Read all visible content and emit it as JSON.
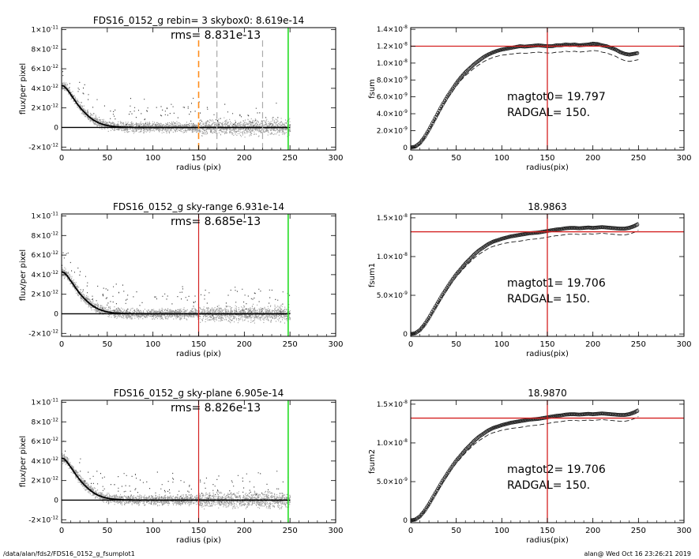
{
  "footer": {
    "left": "/data/alan/fds2/FDS16_0152_g_fsumplot1",
    "right": "alan@  Wed Oct 16 23:26:21 2019"
  },
  "colors": {
    "red": "#d42020",
    "green": "#22dd22",
    "orange": "#ff8c1a",
    "dash_gray": "#aaaaaa",
    "scatter_gray": "#9a9a9a",
    "scatter_dark": "#333333",
    "curve": "#222222"
  },
  "chart_data": [
    {
      "id": "p1",
      "type": "scatter",
      "title": "FDS16_0152_g rebin= 3    skybox0:  8.619e-14",
      "xlabel": "radius (pix)",
      "ylabel": "flux/per pixel",
      "xlim": [
        0,
        300
      ],
      "ylim": [
        -2.3e-12,
        1.02e-11
      ],
      "x_ticks": [
        0,
        50,
        100,
        150,
        200,
        250,
        300
      ],
      "y_ticks": [
        {
          "v": 1e-11,
          "m": "1×10",
          "e": "-11"
        },
        {
          "v": 8e-12,
          "m": "8×10",
          "e": "-12"
        },
        {
          "v": 6e-12,
          "m": "6×10",
          "e": "-12"
        },
        {
          "v": 4e-12,
          "m": "4×10",
          "e": "-12"
        },
        {
          "v": 2e-12,
          "m": "2×10",
          "e": "-12"
        },
        {
          "v": 0,
          "m": "0",
          "e": ""
        },
        {
          "v": -2e-12,
          "m": "-2×10",
          "e": "-12"
        }
      ],
      "annotation": "rms= 8.831e-13",
      "vlines": [
        {
          "x": 150,
          "style": "orange-dashed"
        },
        {
          "x": 170,
          "style": "gray-dashed"
        },
        {
          "x": 220,
          "style": "gray-dashed"
        },
        {
          "x": 248,
          "style": "green"
        }
      ],
      "profile": {
        "x": [
          0,
          3,
          6,
          9,
          12,
          15,
          18,
          21,
          25,
          30,
          35,
          40,
          45,
          50,
          55,
          60,
          65,
          70,
          75,
          80,
          90,
          100,
          110,
          120,
          130,
          140,
          150,
          160,
          170,
          180,
          190,
          200,
          210,
          220,
          230,
          240,
          248
        ],
        "y": [
          4.3e-12,
          4.2e-12,
          3.9e-12,
          3.5e-12,
          3.1e-12,
          2.7e-12,
          2.3e-12,
          1.95e-12,
          1.55e-12,
          1.1e-12,
          7.5e-13,
          5e-13,
          3.2e-13,
          2e-13,
          1.2e-13,
          8e-14,
          5e-14,
          3e-14,
          2e-14,
          1e-14,
          5e-15,
          0,
          0,
          0,
          0,
          0,
          0,
          0,
          0,
          0,
          0,
          0,
          0,
          0,
          0,
          0,
          0
        ]
      }
    },
    {
      "id": "p2",
      "type": "line",
      "title": "",
      "xlabel": "radius(pix)",
      "ylabel": "fsum",
      "xlim": [
        0,
        300
      ],
      "ylim": [
        -3e-10,
        1.42e-08
      ],
      "x_ticks": [
        0,
        50,
        100,
        150,
        200,
        250,
        300
      ],
      "y_ticks": [
        {
          "v": 1.4e-08,
          "m": "1.4×10",
          "e": "-8"
        },
        {
          "v": 1.2e-08,
          "m": "1.2×10",
          "e": "-8"
        },
        {
          "v": 1e-08,
          "m": "1.0×10",
          "e": "-8"
        },
        {
          "v": 8e-09,
          "m": "8.0×10",
          "e": "-9"
        },
        {
          "v": 6e-09,
          "m": "6.0×10",
          "e": "-9"
        },
        {
          "v": 4e-09,
          "m": "4.0×10",
          "e": "-9"
        },
        {
          "v": 2e-09,
          "m": "2.0×10",
          "e": "-9"
        },
        {
          "v": 0,
          "m": "0",
          "e": ""
        }
      ],
      "annotation_lines": [
        "magtot0=  19.797",
        "RADGAL=    150."
      ],
      "hline": 1.2e-08,
      "vline": 150,
      "x": [
        0,
        5,
        10,
        15,
        20,
        25,
        30,
        35,
        40,
        45,
        50,
        55,
        60,
        65,
        70,
        75,
        80,
        85,
        90,
        95,
        100,
        105,
        110,
        115,
        120,
        125,
        130,
        135,
        140,
        145,
        150,
        155,
        160,
        165,
        170,
        175,
        180,
        185,
        190,
        195,
        200,
        205,
        210,
        215,
        220,
        225,
        230,
        235,
        240,
        245,
        250
      ],
      "y": [
        0,
        1e-10,
        5e-10,
        1.2e-09,
        2.1e-09,
        3.1e-09,
        4.1e-09,
        5.1e-09,
        6e-09,
        6.8e-09,
        7.6e-09,
        8.3e-09,
        8.9e-09,
        9.4e-09,
        9.9e-09,
        1.03e-08,
        1.07e-08,
        1.1e-08,
        1.125e-08,
        1.145e-08,
        1.16e-08,
        1.17e-08,
        1.18e-08,
        1.19e-08,
        1.2e-08,
        1.195e-08,
        1.2e-08,
        1.205e-08,
        1.21e-08,
        1.205e-08,
        1.2e-08,
        1.2e-08,
        1.21e-08,
        1.21e-08,
        1.22e-08,
        1.215e-08,
        1.22e-08,
        1.21e-08,
        1.215e-08,
        1.22e-08,
        1.23e-08,
        1.225e-08,
        1.21e-08,
        1.2e-08,
        1.18e-08,
        1.16e-08,
        1.13e-08,
        1.11e-08,
        1.1e-08,
        1.11e-08,
        1.12e-08
      ],
      "envelope_offset": [
        8e-10,
        -3e-10
      ]
    },
    {
      "id": "p3",
      "type": "scatter",
      "title": "FDS16_0152_g sky-range  6.931e-14",
      "xlabel": "radius (pix)",
      "ylabel": "flux/per pixel",
      "xlim": [
        0,
        300
      ],
      "ylim": [
        -2.3e-12,
        1.02e-11
      ],
      "x_ticks": [
        0,
        50,
        100,
        150,
        200,
        250,
        300
      ],
      "y_ticks": [
        {
          "v": 1e-11,
          "m": "1×10",
          "e": "-11"
        },
        {
          "v": 8e-12,
          "m": "8×10",
          "e": "-12"
        },
        {
          "v": 6e-12,
          "m": "6×10",
          "e": "-12"
        },
        {
          "v": 4e-12,
          "m": "4×10",
          "e": "-12"
        },
        {
          "v": 2e-12,
          "m": "2×10",
          "e": "-12"
        },
        {
          "v": 0,
          "m": "0",
          "e": ""
        },
        {
          "v": -2e-12,
          "m": "-2×10",
          "e": "-12"
        }
      ],
      "annotation": "rms= 8.685e-13",
      "vlines": [
        {
          "x": 150,
          "style": "red"
        },
        {
          "x": 248,
          "style": "green"
        }
      ],
      "profile": {
        "x": [
          0,
          3,
          6,
          9,
          12,
          15,
          18,
          21,
          25,
          30,
          35,
          40,
          45,
          50,
          55,
          60,
          65,
          70,
          75,
          80,
          90,
          100,
          110,
          120,
          130,
          140,
          150,
          160,
          170,
          180,
          190,
          200,
          210,
          220,
          230,
          240,
          248
        ],
        "y": [
          4.3e-12,
          4.2e-12,
          3.9e-12,
          3.5e-12,
          3.1e-12,
          2.7e-12,
          2.3e-12,
          1.95e-12,
          1.55e-12,
          1.1e-12,
          7.5e-13,
          5e-13,
          3.2e-13,
          2e-13,
          1.2e-13,
          8e-14,
          5e-14,
          3e-14,
          2e-14,
          1e-14,
          5e-15,
          0,
          0,
          0,
          0,
          0,
          0,
          0,
          0,
          0,
          0,
          0,
          0,
          0,
          0,
          0,
          0
        ]
      }
    },
    {
      "id": "p4",
      "type": "line",
      "title": "18.9863",
      "xlabel": "radius(pix)",
      "ylabel": "fsum1",
      "xlim": [
        0,
        300
      ],
      "ylim": [
        -3e-10,
        1.55e-08
      ],
      "x_ticks": [
        0,
        50,
        100,
        150,
        200,
        250,
        300
      ],
      "y_ticks": [
        {
          "v": 1.5e-08,
          "m": "1.5×10",
          "e": "-8"
        },
        {
          "v": 1e-08,
          "m": "1.0×10",
          "e": "-8"
        },
        {
          "v": 5e-09,
          "m": "5.0×10",
          "e": "-9"
        },
        {
          "v": 0,
          "m": "0",
          "e": ""
        }
      ],
      "annotation_lines": [
        "magtot1=  19.706",
        "RADGAL=    150."
      ],
      "hline": 1.32e-08,
      "vline": 150,
      "x": [
        0,
        5,
        10,
        15,
        20,
        25,
        30,
        35,
        40,
        45,
        50,
        55,
        60,
        65,
        70,
        75,
        80,
        85,
        90,
        95,
        100,
        105,
        110,
        115,
        120,
        125,
        130,
        135,
        140,
        145,
        150,
        155,
        160,
        165,
        170,
        175,
        180,
        185,
        190,
        195,
        200,
        205,
        210,
        215,
        220,
        225,
        230,
        235,
        240,
        245,
        250
      ],
      "y": [
        0,
        1e-10,
        5e-10,
        1.2e-09,
        2.1e-09,
        3.1e-09,
        4.1e-09,
        5.1e-09,
        6e-09,
        6.9e-09,
        7.7e-09,
        8.4e-09,
        9.1e-09,
        9.7e-09,
        1.03e-08,
        1.08e-08,
        1.12e-08,
        1.16e-08,
        1.19e-08,
        1.21e-08,
        1.23e-08,
        1.245e-08,
        1.26e-08,
        1.27e-08,
        1.28e-08,
        1.29e-08,
        1.3e-08,
        1.305e-08,
        1.31e-08,
        1.32e-08,
        1.33e-08,
        1.34e-08,
        1.35e-08,
        1.355e-08,
        1.365e-08,
        1.37e-08,
        1.37e-08,
        1.365e-08,
        1.37e-08,
        1.375e-08,
        1.37e-08,
        1.375e-08,
        1.38e-08,
        1.375e-08,
        1.37e-08,
        1.365e-08,
        1.36e-08,
        1.36e-08,
        1.37e-08,
        1.39e-08,
        1.42e-08
      ],
      "envelope_offset": [
        8e-10,
        -9e-10
      ]
    },
    {
      "id": "p5",
      "type": "scatter",
      "title": "FDS16_0152_g sky-plane  6.905e-14",
      "xlabel": "radius (pix)",
      "ylabel": "flux/per pixel",
      "xlim": [
        0,
        300
      ],
      "ylim": [
        -2.3e-12,
        1.02e-11
      ],
      "x_ticks": [
        0,
        50,
        100,
        150,
        200,
        250,
        300
      ],
      "y_ticks": [
        {
          "v": 1e-11,
          "m": "1×10",
          "e": "-11"
        },
        {
          "v": 8e-12,
          "m": "8×10",
          "e": "-12"
        },
        {
          "v": 6e-12,
          "m": "6×10",
          "e": "-12"
        },
        {
          "v": 4e-12,
          "m": "4×10",
          "e": "-12"
        },
        {
          "v": 2e-12,
          "m": "2×10",
          "e": "-12"
        },
        {
          "v": 0,
          "m": "0",
          "e": ""
        },
        {
          "v": -2e-12,
          "m": "-2×10",
          "e": "-12"
        }
      ],
      "annotation": "rms= 8.826e-13",
      "vlines": [
        {
          "x": 150,
          "style": "red"
        },
        {
          "x": 248,
          "style": "green"
        }
      ],
      "profile": {
        "x": [
          0,
          3,
          6,
          9,
          12,
          15,
          18,
          21,
          25,
          30,
          35,
          40,
          45,
          50,
          55,
          60,
          65,
          70,
          75,
          80,
          90,
          100,
          110,
          120,
          130,
          140,
          150,
          160,
          170,
          180,
          190,
          200,
          210,
          220,
          230,
          240,
          248
        ],
        "y": [
          4.3e-12,
          4.2e-12,
          3.9e-12,
          3.5e-12,
          3.1e-12,
          2.7e-12,
          2.3e-12,
          1.95e-12,
          1.55e-12,
          1.1e-12,
          7.5e-13,
          5e-13,
          3.2e-13,
          2e-13,
          1.2e-13,
          8e-14,
          5e-14,
          3e-14,
          2e-14,
          1e-14,
          5e-15,
          0,
          0,
          0,
          0,
          0,
          0,
          0,
          0,
          0,
          0,
          0,
          0,
          0,
          0,
          0,
          0
        ]
      }
    },
    {
      "id": "p6",
      "type": "line",
      "title": "18.9870",
      "xlabel": "radius(pix)",
      "ylabel": "fsum2",
      "xlim": [
        0,
        300
      ],
      "ylim": [
        -3e-10,
        1.55e-08
      ],
      "x_ticks": [
        0,
        50,
        100,
        150,
        200,
        250,
        300
      ],
      "y_ticks": [
        {
          "v": 1.5e-08,
          "m": "1.5×10",
          "e": "-8"
        },
        {
          "v": 1e-08,
          "m": "1.0×10",
          "e": "-8"
        },
        {
          "v": 5e-09,
          "m": "5.0×10",
          "e": "-9"
        },
        {
          "v": 0,
          "m": "0",
          "e": ""
        }
      ],
      "annotation_lines": [
        "magtot2=  19.706",
        "RADGAL=    150."
      ],
      "hline": 1.32e-08,
      "vline": 150,
      "x": [
        0,
        5,
        10,
        15,
        20,
        25,
        30,
        35,
        40,
        45,
        50,
        55,
        60,
        65,
        70,
        75,
        80,
        85,
        90,
        95,
        100,
        105,
        110,
        115,
        120,
        125,
        130,
        135,
        140,
        145,
        150,
        155,
        160,
        165,
        170,
        175,
        180,
        185,
        190,
        195,
        200,
        205,
        210,
        215,
        220,
        225,
        230,
        235,
        240,
        245,
        250
      ],
      "y": [
        0,
        1e-10,
        5e-10,
        1.2e-09,
        2.1e-09,
        3.1e-09,
        4.1e-09,
        5.1e-09,
        6e-09,
        6.9e-09,
        7.7e-09,
        8.4e-09,
        9.1e-09,
        9.7e-09,
        1.03e-08,
        1.08e-08,
        1.12e-08,
        1.16e-08,
        1.19e-08,
        1.21e-08,
        1.23e-08,
        1.245e-08,
        1.26e-08,
        1.27e-08,
        1.28e-08,
        1.29e-08,
        1.3e-08,
        1.305e-08,
        1.31e-08,
        1.32e-08,
        1.33e-08,
        1.34e-08,
        1.35e-08,
        1.355e-08,
        1.365e-08,
        1.37e-08,
        1.37e-08,
        1.365e-08,
        1.37e-08,
        1.375e-08,
        1.37e-08,
        1.375e-08,
        1.38e-08,
        1.375e-08,
        1.37e-08,
        1.365e-08,
        1.36e-08,
        1.36e-08,
        1.37e-08,
        1.39e-08,
        1.42e-08
      ],
      "envelope_offset": [
        8e-10,
        -9e-10
      ]
    }
  ]
}
